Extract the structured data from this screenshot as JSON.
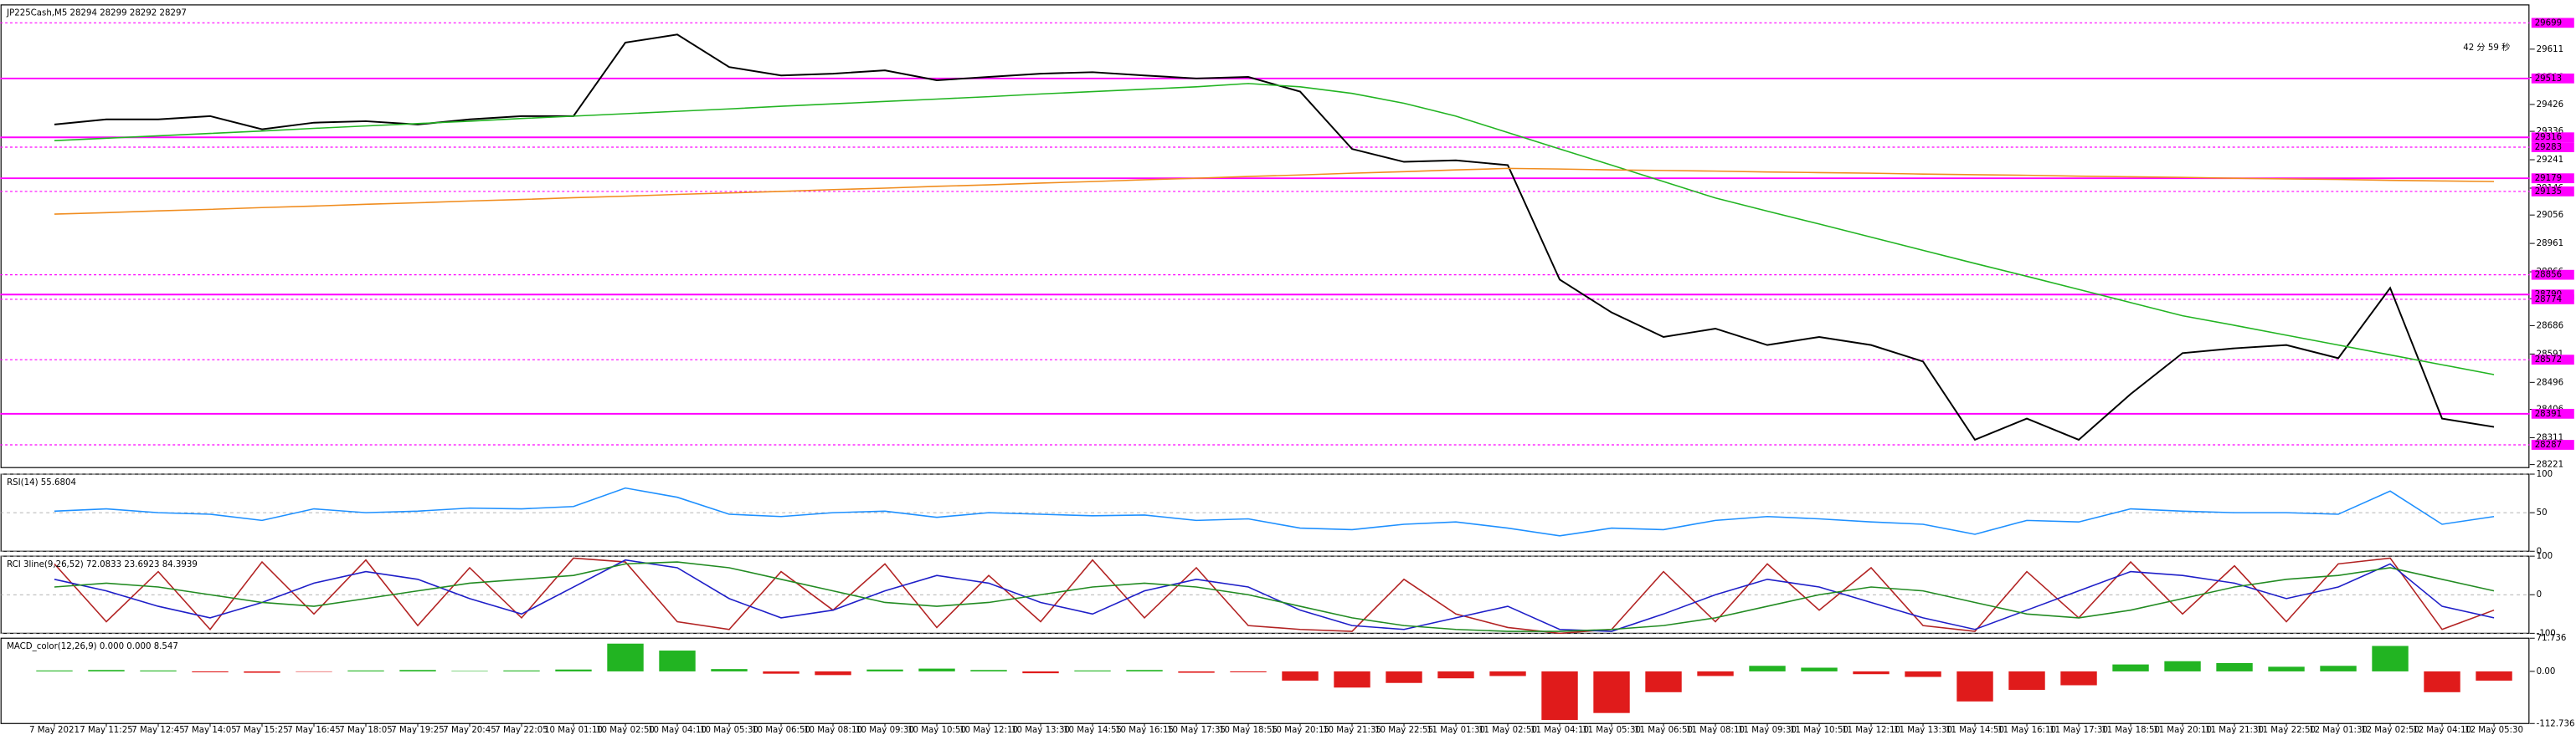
{
  "chart_data": [
    {
      "type": "line",
      "title": "JP225Cash,M5  28294 28299 28292 28297",
      "timer": "42 分 59 秒",
      "categories": [
        "7 May 2021",
        "7 May 11:25",
        "7 May 12:45",
        "7 May 14:05",
        "7 May 15:25",
        "7 May 16:45",
        "7 May 18:05",
        "7 May 19:25",
        "7 May 20:45",
        "7 May 22:05",
        "10 May 01:10",
        "10 May 02:50",
        "10 May 04:10",
        "10 May 05:30",
        "10 May 06:50",
        "10 May 08:10",
        "10 May 09:30",
        "10 May 10:50",
        "10 May 12:10",
        "10 May 13:30",
        "10 May 14:55",
        "10 May 16:15",
        "10 May 17:35",
        "10 May 18:55",
        "10 May 20:15",
        "10 May 21:35",
        "10 May 22:55",
        "11 May 01:30",
        "11 May 02:50",
        "11 May 04:10",
        "11 May 05:30",
        "11 May 06:50",
        "11 May 08:10",
        "11 May 09:30",
        "11 May 10:50",
        "11 May 12:10",
        "11 May 13:30",
        "11 May 14:50",
        "11 May 16:10",
        "11 May 17:30",
        "11 May 18:50",
        "11 May 20:10",
        "11 May 21:30",
        "11 May 22:50",
        "12 May 01:30",
        "12 May 02:50",
        "12 May 04:10",
        "12 May 05:30"
      ],
      "series": [
        {
          "color": "#000000",
          "values": [
            29359,
            29376,
            29376,
            29387,
            29343,
            29365,
            29370,
            29359,
            29376,
            29387,
            29387,
            29633,
            29660,
            29551,
            29523,
            29529,
            29540,
            29507,
            29518,
            29529,
            29534,
            29523,
            29513,
            29518,
            29469,
            29277,
            29234,
            29239,
            29223,
            28840,
            28730,
            28648,
            28676,
            28621,
            28648,
            28621,
            28566,
            28304,
            28375,
            28304,
            28457,
            28594,
            28610,
            28621,
            28577,
            28812,
            28375,
            28347
          ]
        },
        {
          "color": "#22b422",
          "values": [
            29305,
            29313,
            29321,
            29329,
            29337,
            29346,
            29354,
            29362,
            29370,
            29379,
            29387,
            29395,
            29403,
            29411,
            29420,
            29428,
            29436,
            29444,
            29452,
            29461,
            29469,
            29477,
            29485,
            29496,
            29485,
            29463,
            29430,
            29387,
            29332,
            29277,
            29223,
            29168,
            29113,
            29069,
            29026,
            28982,
            28938,
            28894,
            28851,
            28807,
            28763,
            28719,
            28687,
            28654,
            28621,
            28588,
            28555,
            28522
          ]
        },
        {
          "color": "#f08c1e",
          "values": [
            29059,
            29064,
            29070,
            29075,
            29081,
            29086,
            29092,
            29097,
            29103,
            29108,
            29114,
            29119,
            29125,
            29130,
            29135,
            29141,
            29146,
            29152,
            29157,
            29163,
            29168,
            29174,
            29179,
            29185,
            29190,
            29196,
            29201,
            29207,
            29212,
            29210,
            29207,
            29205,
            29203,
            29200,
            29198,
            29196,
            29193,
            29191,
            29189,
            29186,
            29184,
            29182,
            29179,
            29177,
            29175,
            29172,
            29170,
            29168
          ]
        }
      ],
      "level_color": "#ff00ff",
      "levels": [
        {
          "value": 29699,
          "style": "dotted"
        },
        {
          "value": 29513,
          "style": "solid"
        },
        {
          "value": 29316,
          "style": "solid"
        },
        {
          "value": 29283,
          "style": "dotted"
        },
        {
          "value": 29179,
          "style": "solid"
        },
        {
          "value": 29135,
          "style": "dotted"
        },
        {
          "value": 28856,
          "style": "dotted"
        },
        {
          "value": 28790,
          "style": "solid"
        },
        {
          "value": 28774,
          "style": "dotted"
        },
        {
          "value": 28572,
          "style": "dotted"
        },
        {
          "value": 28391,
          "style": "solid"
        },
        {
          "value": 28287,
          "style": "dotted"
        }
      ],
      "ylim": [
        28211,
        29759
      ],
      "yticks": [
        29611,
        29516,
        29426,
        29336,
        29241,
        29146,
        29056,
        28961,
        28866,
        28776,
        28686,
        28591,
        28496,
        28406,
        28311,
        28221
      ],
      "grid": false
    },
    {
      "type": "line",
      "title": "RSI(14) 55.6804",
      "series": [
        {
          "color": "#1e90ff",
          "values": [
            52,
            55,
            50,
            48,
            40,
            55,
            50,
            52,
            56,
            55,
            58,
            82,
            70,
            48,
            45,
            50,
            52,
            44,
            50,
            48,
            46,
            47,
            40,
            42,
            30,
            28,
            35,
            38,
            30,
            20,
            30,
            28,
            40,
            45,
            42,
            38,
            35,
            22,
            40,
            38,
            55,
            52,
            50,
            50,
            48,
            78,
            35,
            45
          ]
        }
      ],
      "ylim": [
        0,
        100
      ],
      "yticks": [
        100,
        50,
        0
      ],
      "grid": true
    },
    {
      "type": "line",
      "title": "RCI 3line(9,26,52) 72.0833 23.6923 84.3939",
      "series": [
        {
          "color": "#b22222",
          "values": [
            80,
            -70,
            60,
            -90,
            85,
            -50,
            90,
            -80,
            70,
            -60,
            95,
            85,
            -70,
            -90,
            60,
            -40,
            80,
            -85,
            50,
            -70,
            90,
            -60,
            70,
            -80,
            -90,
            -95,
            40,
            -50,
            -85,
            -100,
            -90,
            60,
            -70,
            80,
            -40,
            70,
            -80,
            -95,
            60,
            -60,
            85,
            -50,
            75,
            -70,
            80,
            95,
            -90,
            -40
          ]
        },
        {
          "color": "#1e1ec8",
          "values": [
            40,
            10,
            -30,
            -60,
            -20,
            30,
            60,
            40,
            -10,
            -50,
            20,
            90,
            70,
            -10,
            -60,
            -40,
            10,
            50,
            30,
            -20,
            -50,
            10,
            40,
            20,
            -40,
            -80,
            -90,
            -60,
            -30,
            -90,
            -95,
            -50,
            0,
            40,
            20,
            -20,
            -60,
            -90,
            -40,
            10,
            60,
            50,
            30,
            -10,
            20,
            80,
            -30,
            -60
          ]
        },
        {
          "color": "#228b22",
          "values": [
            20,
            30,
            20,
            0,
            -20,
            -30,
            -10,
            10,
            30,
            40,
            50,
            80,
            85,
            70,
            40,
            10,
            -20,
            -30,
            -20,
            0,
            20,
            30,
            20,
            0,
            -30,
            -60,
            -80,
            -90,
            -95,
            -95,
            -90,
            -80,
            -60,
            -30,
            0,
            20,
            10,
            -20,
            -50,
            -60,
            -40,
            -10,
            20,
            40,
            50,
            70,
            40,
            10
          ]
        }
      ],
      "ylim": [
        -100,
        100
      ],
      "yticks": [
        100,
        0,
        -100
      ],
      "grid": true
    },
    {
      "type": "bar",
      "title": "MACD_color(12,26,9) 0.000 0.000 8.547",
      "up_color": "#22b422",
      "down_color": "#e01b1b",
      "values": [
        2,
        3,
        2,
        -2,
        -3,
        -1,
        2,
        3,
        1,
        2,
        4,
        60,
        45,
        5,
        -5,
        -8,
        4,
        6,
        3,
        -4,
        2,
        3,
        -3,
        -2,
        -20,
        -35,
        -25,
        -15,
        -10,
        -105,
        -90,
        -45,
        -10,
        12,
        8,
        -6,
        -12,
        -65,
        -40,
        -30,
        15,
        22,
        18,
        10,
        12,
        55,
        -45,
        -20
      ],
      "ylim": [
        -112.736,
        71.736
      ],
      "yticks": [
        71.736,
        {
          "value": 0,
          "label": "0.00"
        },
        -112.736
      ],
      "grid": false
    }
  ]
}
